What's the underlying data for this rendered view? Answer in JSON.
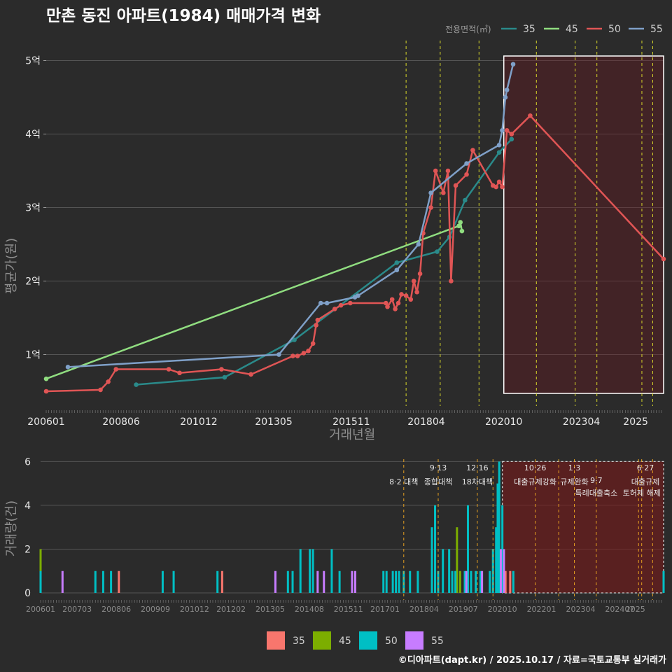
{
  "chart_data": [
    {
      "id": "price",
      "type": "line",
      "title": "만촌 동진 아파트(1984) 매매가격 변화",
      "xlabel": "거래년월",
      "ylabel": "평균가(원)",
      "x_ticks": [
        "200601",
        "200806",
        "201012",
        "201305",
        "201511",
        "201804",
        "202010",
        "202304",
        "2025"
      ],
      "y_ticks": [
        {
          "value": 1,
          "label": "1억"
        },
        {
          "value": 2,
          "label": "2억"
        },
        {
          "value": 3,
          "label": "3억"
        },
        {
          "value": 4,
          "label": "4억"
        },
        {
          "value": 5,
          "label": "5억"
        }
      ],
      "x_range": [
        2006.0,
        2025.9
      ],
      "y_range_eok": [
        0.3,
        5.3
      ],
      "legend_title": "전용면적(㎡)",
      "policy_lines": [
        2017.6,
        2018.7,
        2019.95,
        2021.8,
        2023.05,
        2023.75,
        2025.2,
        2025.55
      ],
      "highlight_range": [
        2020.75,
        2025.9
      ],
      "series": [
        {
          "name": "35",
          "color": "#2a8a8a",
          "points": [
            [
              2008.9,
              0.59
            ],
            [
              2011.75,
              0.69
            ],
            [
              2014.0,
              1.2
            ],
            [
              2017.3,
              2.25
            ],
            [
              2018.6,
              2.4
            ],
            [
              2019.0,
              2.6
            ],
            [
              2019.5,
              3.1
            ],
            [
              2020.6,
              3.75
            ],
            [
              2021.0,
              3.93
            ]
          ]
        },
        {
          "name": "45",
          "color": "#90dd80",
          "points": [
            [
              2006.0,
              0.67
            ],
            [
              2019.3,
              2.75
            ],
            [
              2019.35,
              2.8
            ],
            [
              2019.4,
              2.68
            ]
          ]
        },
        {
          "name": "50",
          "color": "#e05555",
          "points": [
            [
              2006.0,
              0.5
            ],
            [
              2007.75,
              0.52
            ],
            [
              2008.0,
              0.63
            ],
            [
              2008.25,
              0.8
            ],
            [
              2009.95,
              0.8
            ],
            [
              2010.3,
              0.75
            ],
            [
              2011.65,
              0.8
            ],
            [
              2012.6,
              0.73
            ],
            [
              2013.95,
              0.98
            ],
            [
              2014.1,
              0.98
            ],
            [
              2014.3,
              1.02
            ],
            [
              2014.45,
              1.05
            ],
            [
              2014.6,
              1.15
            ],
            [
              2014.7,
              1.4
            ],
            [
              2014.75,
              1.47
            ],
            [
              2015.3,
              1.62
            ],
            [
              2015.5,
              1.67
            ],
            [
              2015.8,
              1.7
            ],
            [
              2016.95,
              1.7
            ],
            [
              2017.0,
              1.65
            ],
            [
              2017.15,
              1.75
            ],
            [
              2017.25,
              1.62
            ],
            [
              2017.35,
              1.7
            ],
            [
              2017.45,
              1.82
            ],
            [
              2017.6,
              1.8
            ],
            [
              2017.75,
              1.75
            ],
            [
              2017.85,
              2.0
            ],
            [
              2017.95,
              1.85
            ],
            [
              2018.05,
              2.1
            ],
            [
              2018.15,
              2.65
            ],
            [
              2018.4,
              3.0
            ],
            [
              2018.55,
              3.5
            ],
            [
              2018.8,
              3.2
            ],
            [
              2018.95,
              3.5
            ],
            [
              2019.05,
              2.0
            ],
            [
              2019.2,
              3.3
            ],
            [
              2019.55,
              3.45
            ],
            [
              2019.75,
              3.78
            ],
            [
              2020.4,
              3.3
            ],
            [
              2020.5,
              3.28
            ],
            [
              2020.6,
              3.35
            ],
            [
              2020.7,
              3.28
            ],
            [
              2020.85,
              4.05
            ],
            [
              2021.0,
              4.0
            ],
            [
              2021.6,
              4.25
            ],
            [
              2025.9,
              2.3
            ]
          ]
        },
        {
          "name": "55",
          "color": "#7fa0c8",
          "points": [
            [
              2006.7,
              0.83
            ],
            [
              2013.5,
              1.0
            ],
            [
              2014.85,
              1.7
            ],
            [
              2015.05,
              1.7
            ],
            [
              2015.95,
              1.78
            ],
            [
              2016.05,
              1.8
            ],
            [
              2017.3,
              2.15
            ],
            [
              2018.0,
              2.5
            ],
            [
              2018.4,
              3.2
            ],
            [
              2019.55,
              3.6
            ],
            [
              2020.6,
              3.85
            ],
            [
              2020.7,
              4.05
            ],
            [
              2020.8,
              4.5
            ],
            [
              2020.85,
              4.6
            ],
            [
              2021.05,
              4.95
            ]
          ]
        }
      ]
    },
    {
      "id": "volume",
      "type": "bar",
      "xlabel": "",
      "ylabel": "거래량(건)",
      "x_ticks": [
        "200601",
        "200703",
        "200806",
        "200909",
        "201012",
        "201202",
        "201305",
        "201408",
        "201511",
        "201701",
        "201804",
        "201907",
        "202010",
        "202201",
        "202304",
        "202407",
        "2025"
      ],
      "y_ticks": [
        0,
        2,
        4,
        6
      ],
      "y_range": [
        0,
        6.3
      ],
      "x_range": [
        2006.0,
        2025.9
      ],
      "highlight_range": [
        2020.75,
        2025.9
      ],
      "policy_lines": [
        2017.6,
        2018.7,
        2019.95,
        2020.45,
        2021.8,
        2022.55,
        2023.05,
        2023.75,
        2025.1,
        2025.2,
        2025.55
      ],
      "annotations": [
        {
          "x": 2017.6,
          "line1": "",
          "line2": "8·2 대책"
        },
        {
          "x": 2018.7,
          "line1": "9·13",
          "line2": "종합대책"
        },
        {
          "x": 2019.95,
          "line1": "12·16",
          "line2": "18차대책"
        },
        {
          "x": 2021.8,
          "line1": "10·26",
          "line2": "대출규제강화"
        },
        {
          "x": 2023.05,
          "line1": "1·3",
          "line2": "규제완화"
        },
        {
          "x": 2023.75,
          "line1": "9·7",
          "line2": "특례대출축소"
        },
        {
          "x": 2025.2,
          "line1": "",
          "line2": "토허제 해제"
        },
        {
          "x": 2025.55,
          "line1": "6·27",
          "line2": "대출규제"
        }
      ],
      "series": [
        {
          "name": "35",
          "color": "#f8766d",
          "bars": [
            [
              2008.5,
              1
            ],
            [
              2011.8,
              1
            ],
            [
              2020.85,
              1
            ],
            [
              2021.0,
              1
            ]
          ]
        },
        {
          "name": "45",
          "color": "#7cae00",
          "bars": [
            [
              2006.0,
              2
            ],
            [
              2019.3,
              3
            ],
            [
              2019.4,
              1
            ]
          ]
        },
        {
          "name": "50",
          "color": "#00bfc4",
          "bars": [
            [
              2006.0,
              1
            ],
            [
              2007.75,
              1
            ],
            [
              2008.0,
              1
            ],
            [
              2008.25,
              1
            ],
            [
              2009.9,
              1
            ],
            [
              2010.25,
              1
            ],
            [
              2011.65,
              1
            ],
            [
              2013.9,
              1
            ],
            [
              2014.05,
              1
            ],
            [
              2014.3,
              2
            ],
            [
              2014.6,
              2
            ],
            [
              2014.7,
              2
            ],
            [
              2015.3,
              2
            ],
            [
              2015.55,
              1
            ],
            [
              2016.95,
              1
            ],
            [
              2017.05,
              1
            ],
            [
              2017.25,
              1
            ],
            [
              2017.35,
              1
            ],
            [
              2017.45,
              1
            ],
            [
              2017.6,
              1
            ],
            [
              2017.8,
              1
            ],
            [
              2018.05,
              1
            ],
            [
              2018.5,
              3
            ],
            [
              2018.6,
              4
            ],
            [
              2018.7,
              1
            ],
            [
              2018.85,
              2
            ],
            [
              2019.05,
              2
            ],
            [
              2019.15,
              1
            ],
            [
              2019.25,
              1
            ],
            [
              2019.55,
              1
            ],
            [
              2019.65,
              4
            ],
            [
              2019.75,
              1
            ],
            [
              2019.9,
              1
            ],
            [
              2020.05,
              1
            ],
            [
              2020.35,
              1
            ],
            [
              2020.45,
              2
            ],
            [
              2020.55,
              3
            ],
            [
              2020.6,
              5
            ],
            [
              2020.65,
              6
            ],
            [
              2020.75,
              4
            ],
            [
              2021.1,
              1
            ],
            [
              2025.9,
              1
            ]
          ]
        },
        {
          "name": "55",
          "color": "#c77cff",
          "bars": [
            [
              2006.7,
              1
            ],
            [
              2013.5,
              1
            ],
            [
              2014.85,
              1
            ],
            [
              2015.05,
              1
            ],
            [
              2015.95,
              1
            ],
            [
              2016.05,
              1
            ],
            [
              2019.6,
              1
            ],
            [
              2020.1,
              1
            ],
            [
              2020.7,
              2
            ],
            [
              2020.8,
              2
            ]
          ]
        }
      ]
    }
  ],
  "bottom_legend": [
    {
      "name": "35",
      "color": "#f8766d"
    },
    {
      "name": "45",
      "color": "#7cae00"
    },
    {
      "name": "50",
      "color": "#00bfc4"
    },
    {
      "name": "55",
      "color": "#c77cff"
    }
  ],
  "footer": "©디아파트(dapt.kr) / 2025.10.17 / 자료=국토교통부 실거래가"
}
